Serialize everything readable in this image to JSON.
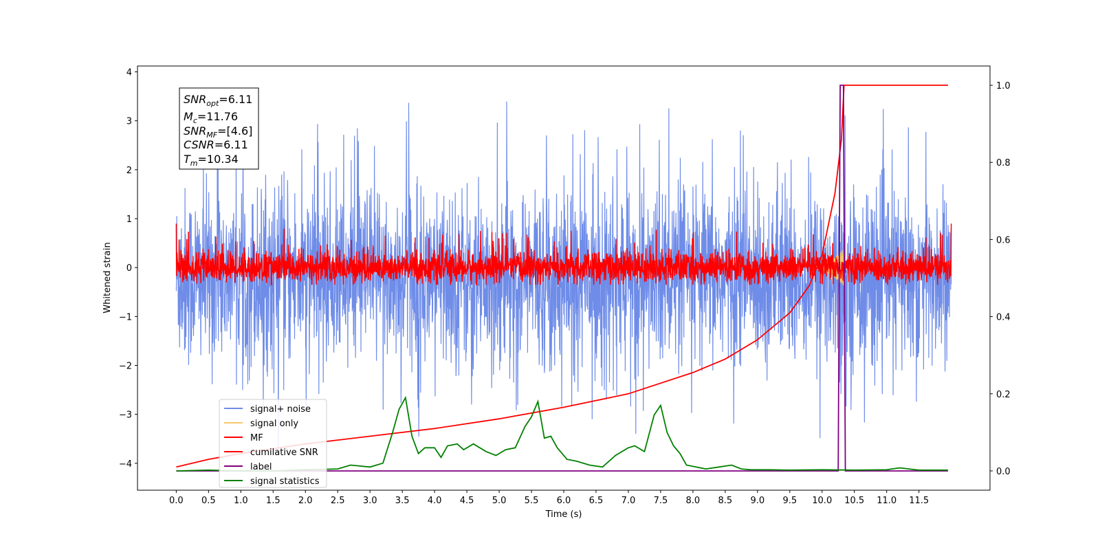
{
  "chart_data": {
    "type": "line",
    "xlabel": "Time (s)",
    "ylabel": "Whitened strain",
    "xlim": [
      -0.6,
      12.6
    ],
    "ylim": [
      -4.55,
      4.12
    ],
    "y2lim": [
      -0.05,
      1.05
    ],
    "x_ticks": [
      "0.0",
      "0.5",
      "1.0",
      "1.5",
      "2.0",
      "2.5",
      "3.0",
      "3.5",
      "4.0",
      "4.5",
      "5.0",
      "5.5",
      "6.0",
      "6.5",
      "7.0",
      "7.5",
      "8.0",
      "8.5",
      "9.0",
      "9.5",
      "10.0",
      "10.5",
      "11.0",
      "11.5"
    ],
    "y_ticks": [
      "−4",
      "−3",
      "−2",
      "−1",
      "0",
      "1",
      "2",
      "3",
      "4"
    ],
    "y2_ticks": [
      "0.0",
      "0.2",
      "0.4",
      "0.6",
      "0.8",
      "1.0"
    ],
    "legend_position": "lower-left",
    "series": [
      {
        "name": "signal+ noise",
        "color": "#6e8ce8",
        "axis": "left",
        "kind": "noise",
        "description_values": {
          "t_start": 0.0,
          "t_end": 12.0,
          "center": -0.2,
          "typical_abs_max": 2.0,
          "spikes_max": 3.7,
          "spikes_min": -4.0
        }
      },
      {
        "name": "signal only",
        "color": "#f5c96a",
        "axis": "left",
        "kind": "chirp",
        "description_values": {
          "t_start": 9.8,
          "t_end": 10.34,
          "max_amplitude": 0.4
        }
      },
      {
        "name": "MF",
        "color": "#ff0000",
        "axis": "left",
        "kind": "noise",
        "description_values": {
          "t_start": 0.0,
          "t_end": 12.0,
          "center": 0.0,
          "typical_abs_max": 0.45,
          "spikes_max": 0.9,
          "spikes_min": -0.35
        }
      },
      {
        "name": "cumilative SNR",
        "color": "#ff0000",
        "axis": "right",
        "x": [
          0.0,
          0.5,
          1.0,
          2.0,
          3.0,
          4.0,
          5.0,
          6.0,
          7.0,
          8.0,
          8.5,
          9.0,
          9.5,
          9.8,
          10.0,
          10.2,
          10.3,
          10.34,
          11.95
        ],
        "y": [
          0.01,
          0.03,
          0.045,
          0.07,
          0.09,
          0.11,
          0.135,
          0.165,
          0.2,
          0.255,
          0.29,
          0.34,
          0.41,
          0.48,
          0.56,
          0.72,
          0.86,
          1.0,
          1.0
        ]
      },
      {
        "name": "label",
        "color": "#800080",
        "axis": "right",
        "x": [
          0.0,
          10.25,
          10.28,
          10.33,
          10.36,
          11.95
        ],
        "y": [
          0.0,
          0.0,
          1.0,
          1.0,
          0.0,
          0.0
        ]
      },
      {
        "name": "signal statistics",
        "color": "#008000",
        "axis": "right",
        "x": [
          0.0,
          0.5,
          1.0,
          1.5,
          2.0,
          2.5,
          2.7,
          3.0,
          3.2,
          3.35,
          3.45,
          3.55,
          3.65,
          3.75,
          3.85,
          4.0,
          4.1,
          4.2,
          4.35,
          4.45,
          4.6,
          4.8,
          4.95,
          5.1,
          5.25,
          5.4,
          5.5,
          5.6,
          5.7,
          5.8,
          5.9,
          6.05,
          6.2,
          6.4,
          6.6,
          6.8,
          7.0,
          7.1,
          7.25,
          7.4,
          7.5,
          7.6,
          7.7,
          7.8,
          7.9,
          8.05,
          8.2,
          8.4,
          8.6,
          8.75,
          8.9,
          9.2,
          9.5,
          10.0,
          10.5,
          11.0,
          11.2,
          11.5,
          11.95
        ],
        "y": [
          0.0,
          0.002,
          0.0,
          0.0,
          0.003,
          0.005,
          0.015,
          0.01,
          0.02,
          0.1,
          0.16,
          0.19,
          0.09,
          0.045,
          0.06,
          0.06,
          0.035,
          0.065,
          0.07,
          0.055,
          0.07,
          0.05,
          0.04,
          0.055,
          0.06,
          0.115,
          0.14,
          0.18,
          0.085,
          0.09,
          0.06,
          0.03,
          0.025,
          0.015,
          0.01,
          0.04,
          0.06,
          0.065,
          0.05,
          0.145,
          0.17,
          0.1,
          0.065,
          0.045,
          0.015,
          0.01,
          0.005,
          0.01,
          0.015,
          0.005,
          0.003,
          0.003,
          0.002,
          0.003,
          0.002,
          0.003,
          0.008,
          0.002,
          0.002
        ]
      }
    ]
  },
  "annotation": {
    "snr_opt": {
      "sym": "SNR",
      "sub": "opt",
      "val": "=6.11"
    },
    "mc": {
      "sym": "M",
      "sub": "c",
      "val": "=11.76"
    },
    "snr_mf": {
      "sym": "SNR",
      "sub": "MF",
      "val": "=[4.6]"
    },
    "csnr": {
      "sym": "CSNR",
      "val": "=6.11"
    },
    "tm": {
      "sym": "T",
      "sub": "m",
      "val": "=10.34"
    }
  }
}
